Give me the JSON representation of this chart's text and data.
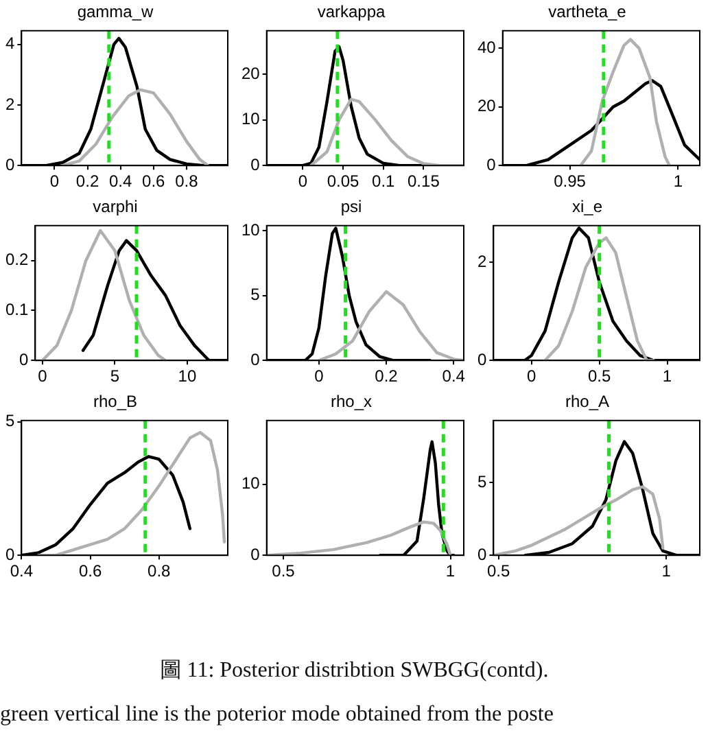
{
  "chart_data": [
    {
      "type": "line",
      "title": "gamma_w",
      "xlim": [
        -0.2,
        1.05
      ],
      "xticks": [
        0,
        0.2,
        0.4,
        0.6,
        0.8
      ],
      "ylim": [
        0,
        4.45
      ],
      "yticks": [
        0,
        2,
        4
      ],
      "series": [
        {
          "color": "#b0b0b0",
          "x": [
            0.05,
            0.15,
            0.25,
            0.35,
            0.45,
            0.52,
            0.6,
            0.7,
            0.8,
            0.88,
            0.93
          ],
          "values": [
            0,
            0.15,
            0.7,
            1.6,
            2.3,
            2.5,
            2.4,
            1.7,
            0.8,
            0.2,
            0
          ]
        },
        {
          "color": "#000000",
          "x": [
            -0.2,
            -0.05,
            0.05,
            0.15,
            0.22,
            0.3,
            0.36,
            0.39,
            0.43,
            0.5,
            0.55,
            0.62,
            0.7,
            0.8,
            0.9,
            1.05
          ],
          "values": [
            0,
            0,
            0.1,
            0.4,
            1.2,
            2.8,
            4.0,
            4.2,
            3.9,
            2.6,
            1.2,
            0.5,
            0.2,
            0.05,
            0,
            0
          ]
        }
      ],
      "ref_lines": [
        {
          "axis": "x",
          "value": 0.33,
          "color": "#22dd22",
          "line_style": "dashed"
        }
      ]
    },
    {
      "type": "line",
      "title": "varkappa",
      "xlim": [
        -0.045,
        0.2
      ],
      "xticks": [
        0,
        0.05,
        0.1,
        0.15
      ],
      "ylim": [
        0,
        29.5
      ],
      "yticks": [
        0,
        10,
        20
      ],
      "series": [
        {
          "color": "#b0b0b0",
          "x": [
            0.01,
            0.03,
            0.045,
            0.06,
            0.07,
            0.09,
            0.11,
            0.13,
            0.15,
            0.17,
            0.2
          ],
          "values": [
            0,
            3,
            10,
            14.5,
            14,
            10,
            5.5,
            2,
            0.4,
            0,
            0
          ]
        },
        {
          "color": "#000000",
          "x": [
            -0.045,
            0,
            0.01,
            0.02,
            0.03,
            0.04,
            0.045,
            0.05,
            0.06,
            0.07,
            0.08,
            0.1,
            0.12,
            0.15
          ],
          "values": [
            0,
            0,
            0.5,
            4,
            14,
            25,
            26,
            23,
            13,
            6,
            2.5,
            0.5,
            0,
            0
          ]
        }
      ],
      "ref_lines": [
        {
          "axis": "x",
          "value": 0.043,
          "color": "#22dd22",
          "line_style": "dashed"
        }
      ]
    },
    {
      "type": "line",
      "title": "vartheta_e",
      "xlim": [
        0.919,
        1.01
      ],
      "xticks": [
        0.95,
        1
      ],
      "ylim": [
        0,
        46
      ],
      "yticks": [
        0,
        20,
        40
      ],
      "series": [
        {
          "color": "#b0b0b0",
          "x": [
            0.955,
            0.96,
            0.965,
            0.97,
            0.975,
            0.978,
            0.982,
            0.987,
            0.99,
            0.994,
            0.996
          ],
          "values": [
            0,
            5,
            22,
            32,
            41,
            43,
            40,
            30,
            15,
            3,
            0
          ]
        },
        {
          "color": "#000000",
          "x": [
            0.919,
            0.93,
            0.94,
            0.95,
            0.96,
            0.965,
            0.97,
            0.975,
            0.98,
            0.985,
            0.988,
            0.992,
            0.997,
            1.003,
            1.01
          ],
          "values": [
            0,
            0,
            2,
            7,
            12,
            16,
            20,
            22,
            25,
            28,
            29,
            27,
            18,
            7,
            2
          ]
        }
      ],
      "ref_lines": [
        {
          "axis": "x",
          "value": 0.9656,
          "color": "#22dd22",
          "line_style": "dashed"
        }
      ]
    },
    {
      "type": "line",
      "title": "varphi",
      "xlim": [
        -0.5,
        12.8
      ],
      "xticks": [
        0,
        5,
        10
      ],
      "ylim": [
        0,
        0.27
      ],
      "yticks": [
        0,
        0.1,
        0.2
      ],
      "series": [
        {
          "color": "#b0b0b0",
          "x": [
            0,
            1,
            2,
            3,
            4,
            5,
            6,
            7,
            8,
            8.5
          ],
          "values": [
            0,
            0.03,
            0.1,
            0.2,
            0.26,
            0.22,
            0.12,
            0.05,
            0.01,
            0
          ]
        },
        {
          "color": "#000000",
          "x": [
            2.8,
            3.5,
            4.5,
            5.3,
            5.8,
            6.5,
            7.5,
            8.5,
            9.5,
            10.5,
            11.5,
            12.8
          ],
          "values": [
            0.02,
            0.05,
            0.15,
            0.22,
            0.24,
            0.22,
            0.17,
            0.13,
            0.07,
            0.03,
            0,
            0
          ]
        }
      ],
      "ref_lines": [
        {
          "axis": "x",
          "value": 6.5,
          "color": "#22dd22",
          "line_style": "dashed"
        }
      ]
    },
    {
      "type": "line",
      "title": "psi",
      "xlim": [
        -0.155,
        0.43
      ],
      "xticks": [
        0,
        0.2,
        0.4
      ],
      "ylim": [
        0,
        10.4
      ],
      "yticks": [
        0,
        5,
        10
      ],
      "series": [
        {
          "color": "#b0b0b0",
          "x": [
            0,
            0.05,
            0.1,
            0.15,
            0.2,
            0.25,
            0.3,
            0.35,
            0.4,
            0.43
          ],
          "values": [
            0,
            0.5,
            1.5,
            3.8,
            5.3,
            4.3,
            2.2,
            0.6,
            0.1,
            0
          ]
        },
        {
          "color": "#000000",
          "x": [
            -0.155,
            -0.04,
            -0.02,
            0,
            0.02,
            0.04,
            0.05,
            0.07,
            0.09,
            0.11,
            0.14,
            0.18,
            0.22,
            0.33
          ],
          "values": [
            0,
            0,
            0.5,
            2.5,
            6.5,
            9.8,
            10.2,
            8,
            5,
            3,
            1.2,
            0.3,
            0,
            0
          ]
        }
      ],
      "ref_lines": [
        {
          "axis": "x",
          "value": 0.079,
          "color": "#22dd22",
          "line_style": "dashed"
        }
      ]
    },
    {
      "type": "line",
      "title": "xi_e",
      "xlim": [
        -0.28,
        1.24
      ],
      "xticks": [
        0,
        0.5,
        1
      ],
      "ylim": [
        0,
        2.75
      ],
      "yticks": [
        0,
        2
      ],
      "series": [
        {
          "color": "#b0b0b0",
          "x": [
            0.1,
            0.2,
            0.3,
            0.4,
            0.5,
            0.55,
            0.62,
            0.7,
            0.78,
            0.85,
            0.9
          ],
          "values": [
            0,
            0.3,
            1.0,
            1.9,
            2.4,
            2.5,
            2.2,
            1.3,
            0.4,
            0,
            0
          ]
        },
        {
          "color": "#000000",
          "x": [
            -0.28,
            -0.05,
            0,
            0.1,
            0.2,
            0.3,
            0.35,
            0.42,
            0.5,
            0.6,
            0.7,
            0.8,
            0.9,
            1.0,
            1.24
          ],
          "values": [
            0,
            0,
            0.1,
            0.6,
            1.6,
            2.5,
            2.7,
            2.5,
            1.6,
            0.8,
            0.4,
            0.1,
            0,
            0,
            0
          ]
        }
      ],
      "ref_lines": [
        {
          "axis": "x",
          "value": 0.5,
          "color": "#22dd22",
          "line_style": "dashed"
        }
      ]
    },
    {
      "type": "line",
      "title": "rho_B",
      "xlim": [
        0.4,
        1.0
      ],
      "xticks": [
        0.4,
        0.6,
        0.8
      ],
      "ylim": [
        0,
        5.05
      ],
      "yticks": [
        0,
        5
      ],
      "series": [
        {
          "color": "#b0b0b0",
          "x": [
            0.45,
            0.5,
            0.55,
            0.6,
            0.65,
            0.7,
            0.75,
            0.8,
            0.85,
            0.89,
            0.92,
            0.95,
            0.97,
            0.985,
            0.99
          ],
          "values": [
            0,
            0,
            0.2,
            0.4,
            0.6,
            1.0,
            1.7,
            2.6,
            3.6,
            4.4,
            4.6,
            4.3,
            3.2,
            1.5,
            0.5
          ]
        },
        {
          "color": "#000000",
          "x": [
            0.4,
            0.45,
            0.5,
            0.55,
            0.6,
            0.65,
            0.7,
            0.74,
            0.77,
            0.8,
            0.84,
            0.87,
            0.89
          ],
          "values": [
            0,
            0.1,
            0.4,
            1.0,
            1.9,
            2.7,
            3.1,
            3.5,
            3.7,
            3.6,
            3.0,
            2.0,
            1.0
          ]
        }
      ],
      "ref_lines": [
        {
          "axis": "x",
          "value": 0.76,
          "color": "#22dd22",
          "line_style": "dashed"
        }
      ]
    },
    {
      "type": "line",
      "title": "rho_x",
      "xlim": [
        0.45,
        1.04
      ],
      "xticks": [
        0.5,
        1
      ],
      "ylim": [
        0,
        19
      ],
      "yticks": [
        0,
        10
      ],
      "series": [
        {
          "color": "#b0b0b0",
          "x": [
            0.45,
            0.55,
            0.65,
            0.75,
            0.82,
            0.88,
            0.92,
            0.95,
            0.97,
            0.99,
            1.0
          ],
          "values": [
            0,
            0.3,
            0.8,
            1.8,
            2.8,
            4,
            4.7,
            4.5,
            3.5,
            1.5,
            0
          ]
        },
        {
          "color": "#000000",
          "x": [
            0.79,
            0.86,
            0.9,
            0.92,
            0.94,
            0.945,
            0.955,
            0.965,
            0.975,
            0.99,
            1.0,
            1.01
          ],
          "values": [
            0,
            0,
            2,
            8,
            15,
            16,
            13,
            7,
            3,
            0.6,
            0,
            0
          ]
        }
      ],
      "ref_lines": [
        {
          "axis": "x",
          "value": 0.979,
          "color": "#22dd22",
          "line_style": "dashed"
        }
      ]
    },
    {
      "type": "line",
      "title": "rho_A",
      "xlim": [
        0.485,
        1.1
      ],
      "xticks": [
        0.5,
        1
      ],
      "ylim": [
        0,
        9.25
      ],
      "yticks": [
        0,
        5
      ],
      "series": [
        {
          "color": "#b0b0b0",
          "x": [
            0.485,
            0.55,
            0.6,
            0.7,
            0.8,
            0.85,
            0.9,
            0.93,
            0.96,
            0.98,
            0.99
          ],
          "values": [
            0,
            0.3,
            0.7,
            1.8,
            3.2,
            3.8,
            4.5,
            4.7,
            4.2,
            2.5,
            0.5
          ]
        },
        {
          "color": "#000000",
          "x": [
            0.58,
            0.65,
            0.72,
            0.78,
            0.82,
            0.85,
            0.875,
            0.9,
            0.93,
            0.96,
            0.99,
            1.03,
            1.1
          ],
          "values": [
            0,
            0.2,
            0.8,
            2,
            3.8,
            6.5,
            7.8,
            7,
            4.5,
            1.5,
            0.3,
            0,
            0
          ]
        }
      ],
      "ref_lines": [
        {
          "axis": "x",
          "value": 0.829,
          "color": "#22dd22",
          "line_style": "dashed"
        }
      ],
      "annotations": [
        "圖 11: Posterior distribtion SWBGG(contd).",
        "green vertical line is the poterior mode obtained from the poste"
      ]
    }
  ]
}
